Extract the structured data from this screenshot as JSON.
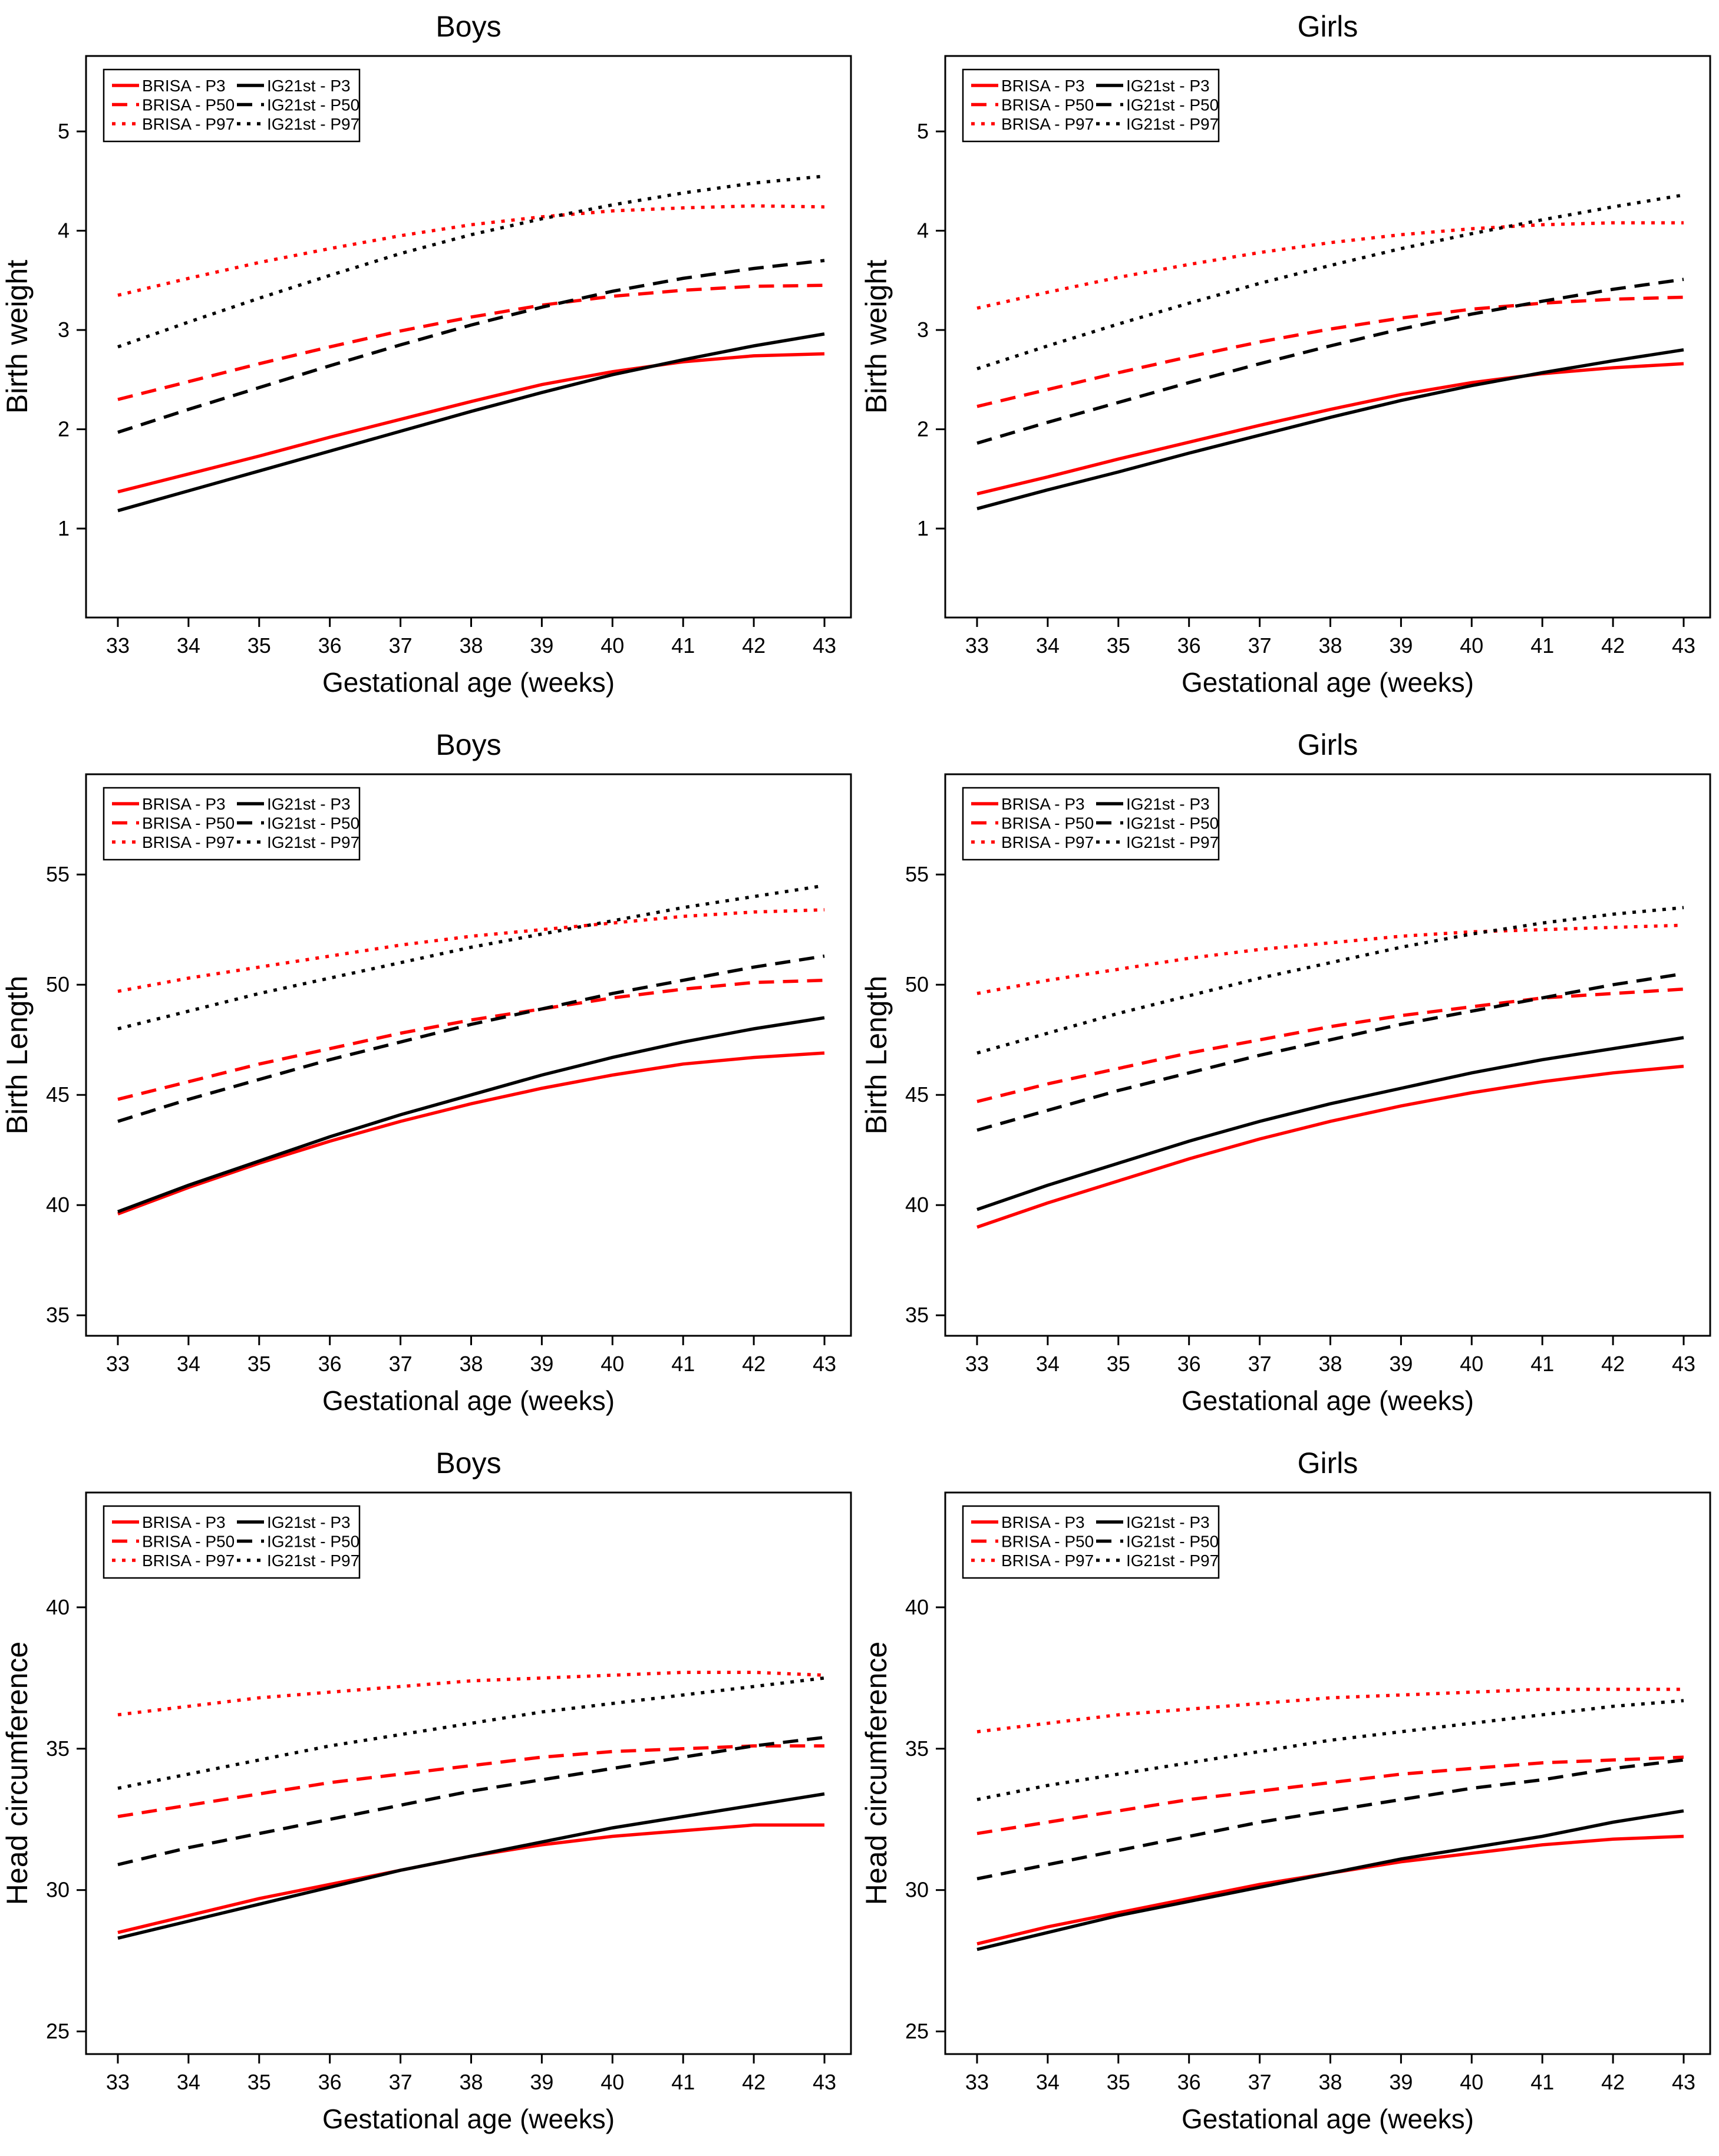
{
  "figure": {
    "x_weeks": [
      33,
      34,
      35,
      36,
      37,
      38,
      39,
      40,
      41,
      42,
      43
    ],
    "legend": {
      "column1": [
        "BRISA - P3",
        "BRISA - P50",
        "BRISA - P97"
      ],
      "column2": [
        "IG21st - P3",
        "IG21st - P50",
        "IG21st - P97"
      ]
    },
    "colors": {
      "brisa": "#ff0000",
      "ig21st": "#000000"
    }
  },
  "chart_data": [
    {
      "type": "line",
      "title": "Boys",
      "xlabel": "Gestational age (weeks)",
      "ylabel": "Birth weight",
      "x": [
        33,
        34,
        35,
        36,
        37,
        38,
        39,
        40,
        41,
        42,
        43
      ],
      "xticks": [
        33,
        34,
        35,
        36,
        37,
        38,
        39,
        40,
        41,
        42,
        43
      ],
      "yticks": [
        1,
        2,
        3,
        4,
        5
      ],
      "ylim": [
        0.104,
        5.76
      ],
      "xlim": [
        32.55,
        43.375
      ],
      "legend_position": "top-left",
      "grid": false,
      "series": [
        {
          "name": "BRISA - P3",
          "color": "#ff0000",
          "style": "solid",
          "values": [
            1.37,
            1.55,
            1.73,
            1.92,
            2.1,
            2.28,
            2.45,
            2.58,
            2.68,
            2.74,
            2.76
          ]
        },
        {
          "name": "BRISA - P50",
          "color": "#ff0000",
          "style": "dashed",
          "values": [
            2.3,
            2.48,
            2.66,
            2.83,
            2.99,
            3.13,
            3.25,
            3.34,
            3.4,
            3.44,
            3.45
          ]
        },
        {
          "name": "BRISA - P97",
          "color": "#ff0000",
          "style": "dotted",
          "values": [
            3.35,
            3.52,
            3.68,
            3.82,
            3.95,
            4.06,
            4.14,
            4.2,
            4.23,
            4.25,
            4.24
          ]
        },
        {
          "name": "IG21st - P3",
          "color": "#000000",
          "style": "solid",
          "values": [
            1.18,
            1.38,
            1.58,
            1.78,
            1.98,
            2.18,
            2.37,
            2.55,
            2.7,
            2.84,
            2.96
          ]
        },
        {
          "name": "IG21st - P50",
          "color": "#000000",
          "style": "dashed",
          "values": [
            1.97,
            2.2,
            2.42,
            2.64,
            2.85,
            3.05,
            3.23,
            3.39,
            3.52,
            3.62,
            3.7
          ]
        },
        {
          "name": "IG21st - P97",
          "color": "#000000",
          "style": "dotted",
          "values": [
            2.83,
            3.08,
            3.32,
            3.55,
            3.77,
            3.96,
            4.12,
            4.26,
            4.38,
            4.48,
            4.55
          ]
        }
      ]
    },
    {
      "type": "line",
      "title": "Girls",
      "xlabel": "Gestational age (weeks)",
      "ylabel": "Birth weight",
      "x": [
        33,
        34,
        35,
        36,
        37,
        38,
        39,
        40,
        41,
        42,
        43
      ],
      "xticks": [
        33,
        34,
        35,
        36,
        37,
        38,
        39,
        40,
        41,
        42,
        43
      ],
      "yticks": [
        1,
        2,
        3,
        4,
        5
      ],
      "ylim": [
        0.104,
        5.76
      ],
      "xlim": [
        32.55,
        43.375
      ],
      "legend_position": "top-left",
      "grid": false,
      "series": [
        {
          "name": "BRISA - P3",
          "color": "#ff0000",
          "style": "solid",
          "values": [
            1.35,
            1.52,
            1.7,
            1.87,
            2.04,
            2.2,
            2.35,
            2.47,
            2.56,
            2.62,
            2.66
          ]
        },
        {
          "name": "BRISA - P50",
          "color": "#ff0000",
          "style": "dashed",
          "values": [
            2.23,
            2.4,
            2.57,
            2.73,
            2.88,
            3.01,
            3.12,
            3.21,
            3.27,
            3.31,
            3.33
          ]
        },
        {
          "name": "BRISA - P97",
          "color": "#ff0000",
          "style": "dotted",
          "values": [
            3.22,
            3.38,
            3.53,
            3.66,
            3.78,
            3.88,
            3.96,
            4.02,
            4.06,
            4.08,
            4.08
          ]
        },
        {
          "name": "IG21st - P3",
          "color": "#000000",
          "style": "solid",
          "values": [
            1.2,
            1.39,
            1.57,
            1.76,
            1.94,
            2.12,
            2.29,
            2.44,
            2.57,
            2.69,
            2.8
          ]
        },
        {
          "name": "IG21st - P50",
          "color": "#000000",
          "style": "dashed",
          "values": [
            1.86,
            2.07,
            2.27,
            2.47,
            2.66,
            2.84,
            3.01,
            3.16,
            3.29,
            3.41,
            3.51
          ]
        },
        {
          "name": "IG21st - P97",
          "color": "#000000",
          "style": "dotted",
          "values": [
            2.61,
            2.84,
            3.06,
            3.27,
            3.47,
            3.65,
            3.82,
            3.97,
            4.11,
            4.24,
            4.36
          ]
        }
      ]
    },
    {
      "type": "line",
      "title": "Boys",
      "xlabel": "Gestational age (weeks)",
      "ylabel": "Birth Length",
      "x": [
        33,
        34,
        35,
        36,
        37,
        38,
        39,
        40,
        41,
        42,
        43
      ],
      "xticks": [
        33,
        34,
        35,
        36,
        37,
        38,
        39,
        40,
        41,
        42,
        43
      ],
      "yticks": [
        35,
        40,
        45,
        50,
        55
      ],
      "ylim": [
        34.07,
        59.55
      ],
      "xlim": [
        32.55,
        43.375
      ],
      "legend_position": "top-left",
      "grid": false,
      "series": [
        {
          "name": "BRISA - P3",
          "color": "#ff0000",
          "style": "solid",
          "values": [
            39.6,
            40.8,
            41.9,
            42.9,
            43.8,
            44.6,
            45.3,
            45.9,
            46.4,
            46.7,
            46.9
          ]
        },
        {
          "name": "BRISA - P50",
          "color": "#ff0000",
          "style": "dashed",
          "values": [
            44.8,
            45.6,
            46.4,
            47.1,
            47.8,
            48.4,
            48.9,
            49.4,
            49.8,
            50.1,
            50.2
          ]
        },
        {
          "name": "BRISA - P97",
          "color": "#ff0000",
          "style": "dotted",
          "values": [
            49.7,
            50.3,
            50.8,
            51.3,
            51.8,
            52.2,
            52.5,
            52.8,
            53.1,
            53.3,
            53.4
          ]
        },
        {
          "name": "IG21st - P3",
          "color": "#000000",
          "style": "solid",
          "values": [
            39.7,
            40.9,
            42.0,
            43.1,
            44.1,
            45.0,
            45.9,
            46.7,
            47.4,
            48.0,
            48.5
          ]
        },
        {
          "name": "IG21st - P50",
          "color": "#000000",
          "style": "dashed",
          "values": [
            43.8,
            44.8,
            45.7,
            46.6,
            47.4,
            48.2,
            48.9,
            49.6,
            50.2,
            50.8,
            51.3
          ]
        },
        {
          "name": "IG21st - P97",
          "color": "#000000",
          "style": "dotted",
          "values": [
            48.0,
            48.8,
            49.6,
            50.3,
            51.0,
            51.7,
            52.3,
            52.9,
            53.5,
            54.0,
            54.5
          ]
        }
      ]
    },
    {
      "type": "line",
      "title": "Girls",
      "xlabel": "Gestational age (weeks)",
      "ylabel": "Birth Length",
      "x": [
        33,
        34,
        35,
        36,
        37,
        38,
        39,
        40,
        41,
        42,
        43
      ],
      "xticks": [
        33,
        34,
        35,
        36,
        37,
        38,
        39,
        40,
        41,
        42,
        43
      ],
      "yticks": [
        35,
        40,
        45,
        50,
        55
      ],
      "ylim": [
        34.07,
        59.55
      ],
      "xlim": [
        32.55,
        43.375
      ],
      "legend_position": "top-left",
      "grid": false,
      "series": [
        {
          "name": "BRISA - P3",
          "color": "#ff0000",
          "style": "solid",
          "values": [
            39.0,
            40.1,
            41.1,
            42.1,
            43.0,
            43.8,
            44.5,
            45.1,
            45.6,
            46.0,
            46.3
          ]
        },
        {
          "name": "BRISA - P50",
          "color": "#ff0000",
          "style": "dashed",
          "values": [
            44.7,
            45.5,
            46.2,
            46.9,
            47.5,
            48.1,
            48.6,
            49.0,
            49.4,
            49.6,
            49.8
          ]
        },
        {
          "name": "BRISA - P97",
          "color": "#ff0000",
          "style": "dotted",
          "values": [
            49.6,
            50.2,
            50.7,
            51.2,
            51.6,
            51.9,
            52.2,
            52.4,
            52.5,
            52.6,
            52.7
          ]
        },
        {
          "name": "IG21st - P3",
          "color": "#000000",
          "style": "solid",
          "values": [
            39.8,
            40.9,
            41.9,
            42.9,
            43.8,
            44.6,
            45.3,
            46.0,
            46.6,
            47.1,
            47.6
          ]
        },
        {
          "name": "IG21st - P50",
          "color": "#000000",
          "style": "dashed",
          "values": [
            43.4,
            44.3,
            45.2,
            46.0,
            46.8,
            47.5,
            48.2,
            48.8,
            49.4,
            50.0,
            50.5
          ]
        },
        {
          "name": "IG21st - P97",
          "color": "#000000",
          "style": "dotted",
          "values": [
            46.9,
            47.8,
            48.7,
            49.5,
            50.3,
            51.0,
            51.7,
            52.3,
            52.8,
            53.2,
            53.5
          ]
        }
      ]
    },
    {
      "type": "line",
      "title": "Boys",
      "xlabel": "Gestational age (weeks)",
      "ylabel": "Head circumference",
      "x": [
        33,
        34,
        35,
        36,
        37,
        38,
        39,
        40,
        41,
        42,
        43
      ],
      "xticks": [
        33,
        34,
        35,
        36,
        37,
        38,
        39,
        40,
        41,
        42,
        43
      ],
      "yticks": [
        25,
        30,
        35,
        40
      ],
      "ylim": [
        24.2,
        44.06
      ],
      "xlim": [
        32.55,
        43.375
      ],
      "legend_position": "top-left",
      "grid": false,
      "series": [
        {
          "name": "BRISA - P3",
          "color": "#ff0000",
          "style": "solid",
          "values": [
            28.5,
            29.1,
            29.7,
            30.2,
            30.7,
            31.2,
            31.6,
            31.9,
            32.1,
            32.3,
            32.3
          ]
        },
        {
          "name": "BRISA - P50",
          "color": "#ff0000",
          "style": "dashed",
          "values": [
            32.6,
            33.0,
            33.4,
            33.8,
            34.1,
            34.4,
            34.7,
            34.9,
            35.0,
            35.1,
            35.1
          ]
        },
        {
          "name": "BRISA - P97",
          "color": "#ff0000",
          "style": "dotted",
          "values": [
            36.2,
            36.5,
            36.8,
            37.0,
            37.2,
            37.4,
            37.5,
            37.6,
            37.7,
            37.7,
            37.6
          ]
        },
        {
          "name": "IG21st - P3",
          "color": "#000000",
          "style": "solid",
          "values": [
            28.3,
            28.9,
            29.5,
            30.1,
            30.7,
            31.2,
            31.7,
            32.2,
            32.6,
            33.0,
            33.4
          ]
        },
        {
          "name": "IG21st - P50",
          "color": "#000000",
          "style": "dashed",
          "values": [
            30.9,
            31.5,
            32.0,
            32.5,
            33.0,
            33.5,
            33.9,
            34.3,
            34.7,
            35.1,
            35.4
          ]
        },
        {
          "name": "IG21st - P97",
          "color": "#000000",
          "style": "dotted",
          "values": [
            33.6,
            34.1,
            34.6,
            35.1,
            35.5,
            35.9,
            36.3,
            36.6,
            36.9,
            37.2,
            37.5
          ]
        }
      ]
    },
    {
      "type": "line",
      "title": "Girls",
      "xlabel": "Gestational age (weeks)",
      "ylabel": "Head circumference",
      "x": [
        33,
        34,
        35,
        36,
        37,
        38,
        39,
        40,
        41,
        42,
        43
      ],
      "xticks": [
        33,
        34,
        35,
        36,
        37,
        38,
        39,
        40,
        41,
        42,
        43
      ],
      "yticks": [
        25,
        30,
        35,
        40
      ],
      "ylim": [
        24.2,
        44.06
      ],
      "xlim": [
        32.55,
        43.375
      ],
      "legend_position": "top-left",
      "grid": false,
      "series": [
        {
          "name": "BRISA - P3",
          "color": "#ff0000",
          "style": "solid",
          "values": [
            28.1,
            28.7,
            29.2,
            29.7,
            30.2,
            30.6,
            31.0,
            31.3,
            31.6,
            31.8,
            31.9
          ]
        },
        {
          "name": "BRISA - P50",
          "color": "#ff0000",
          "style": "dashed",
          "values": [
            32.0,
            32.4,
            32.8,
            33.2,
            33.5,
            33.8,
            34.1,
            34.3,
            34.5,
            34.6,
            34.7
          ]
        },
        {
          "name": "BRISA - P97",
          "color": "#ff0000",
          "style": "dotted",
          "values": [
            35.6,
            35.9,
            36.2,
            36.4,
            36.6,
            36.8,
            36.9,
            37.0,
            37.1,
            37.1,
            37.1
          ]
        },
        {
          "name": "IG21st - P3",
          "color": "#000000",
          "style": "solid",
          "values": [
            27.9,
            28.5,
            29.1,
            29.6,
            30.1,
            30.6,
            31.1,
            31.5,
            31.9,
            32.4,
            32.8
          ]
        },
        {
          "name": "IG21st - P50",
          "color": "#000000",
          "style": "dashed",
          "values": [
            30.4,
            30.9,
            31.4,
            31.9,
            32.4,
            32.8,
            33.2,
            33.6,
            33.9,
            34.3,
            34.6
          ]
        },
        {
          "name": "IG21st - P97",
          "color": "#000000",
          "style": "dotted",
          "values": [
            33.2,
            33.7,
            34.1,
            34.5,
            34.9,
            35.3,
            35.6,
            35.9,
            36.2,
            36.5,
            36.7
          ]
        }
      ]
    }
  ]
}
